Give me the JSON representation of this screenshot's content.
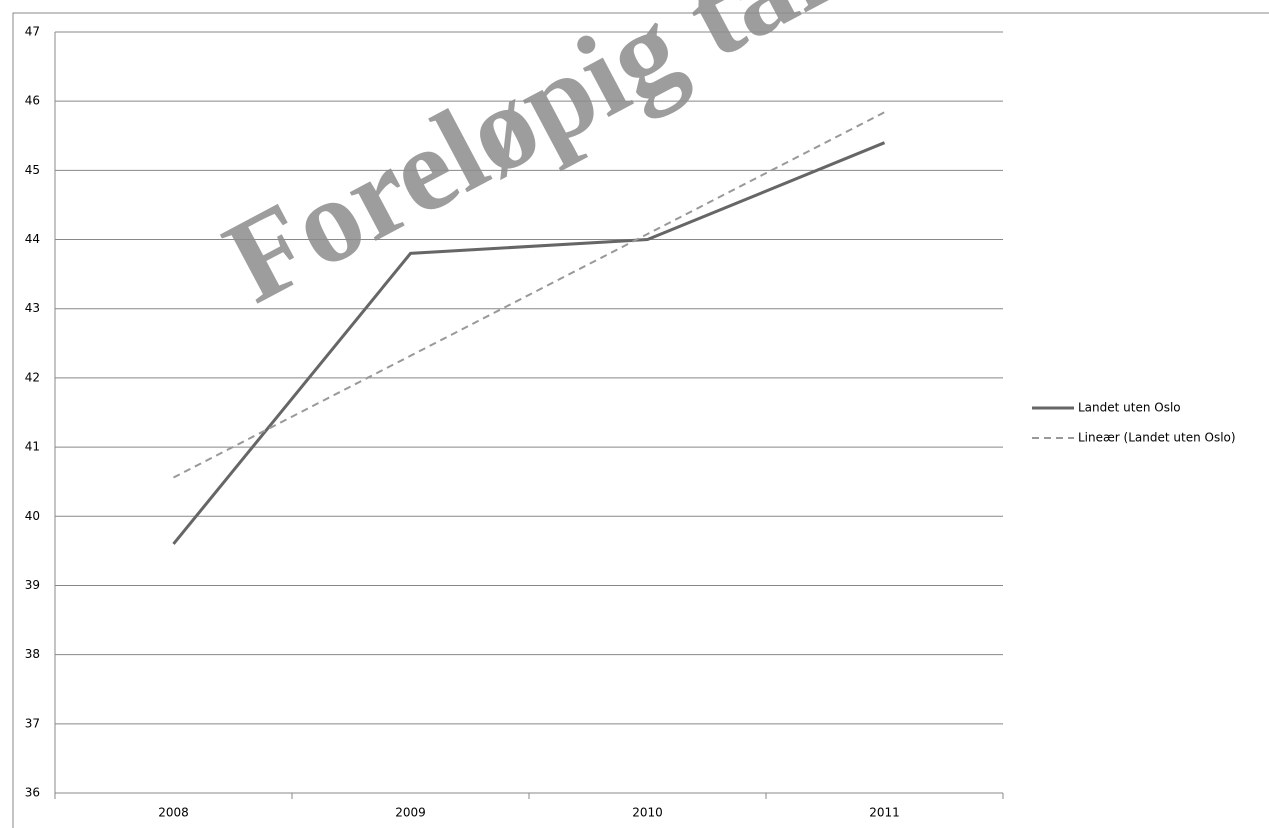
{
  "chart_data": {
    "type": "line",
    "annotation": "Foreløpig tall",
    "categories": [
      "2008",
      "2009",
      "2010",
      "2011"
    ],
    "series": [
      {
        "name": "Landet uten Oslo",
        "color": "#666666",
        "dash": false,
        "values": [
          39.6,
          43.8,
          44.0,
          45.4
        ]
      },
      {
        "name": "Lineær (Landet uten Oslo)",
        "color": "#999999",
        "dash": true,
        "values": [
          40.56,
          42.32,
          44.08,
          45.84
        ]
      }
    ],
    "ylim": [
      36,
      47
    ],
    "yticks": [
      36,
      37,
      38,
      39,
      40,
      41,
      42,
      43,
      44,
      45,
      46,
      47
    ],
    "grid": true,
    "legend": "right"
  }
}
